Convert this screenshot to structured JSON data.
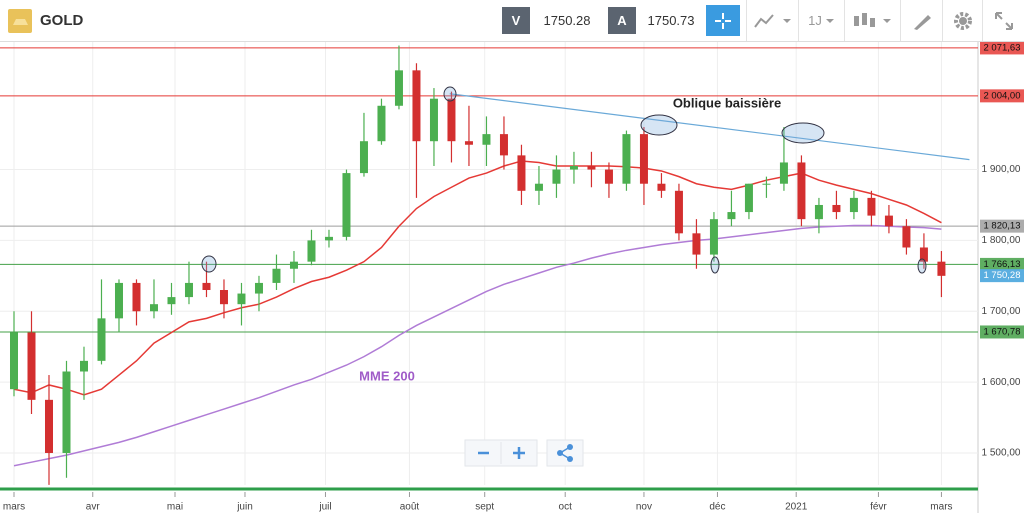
{
  "toolbar": {
    "symbol": "GOLD",
    "bid_label": "V",
    "bid": "1750.28",
    "ask_label": "A",
    "ask": "1750.73",
    "timeframe": "1J"
  },
  "chart_data": {
    "type": "candlestick",
    "xlim": [
      -0.8,
      55.09
    ],
    "xticks": [
      {
        "value": 0,
        "label": "mars"
      },
      {
        "value": 4.5,
        "label": "avr"
      },
      {
        "value": 9.2,
        "label": "mai"
      },
      {
        "value": 13.2,
        "label": "juin"
      },
      {
        "value": 17.8,
        "label": "juil"
      },
      {
        "value": 22.6,
        "label": "août"
      },
      {
        "value": 26.9,
        "label": "sept"
      },
      {
        "value": 31.5,
        "label": "oct"
      },
      {
        "value": 36.0,
        "label": "nov"
      },
      {
        "value": 40.2,
        "label": "déc"
      },
      {
        "value": 44.7,
        "label": "2021"
      },
      {
        "value": 49.4,
        "label": "févr"
      },
      {
        "value": 53.0,
        "label": "mars"
      }
    ],
    "ylim": [
      1440,
      2080
    ],
    "yticks": [
      {
        "value": 1500,
        "label": "1 500,00"
      },
      {
        "value": 1600,
        "label": "1 600,00"
      },
      {
        "value": 1700,
        "label": "1 700,00"
      },
      {
        "value": 1800,
        "label": "1 800,00"
      },
      {
        "value": 1900,
        "label": "1 900,00"
      }
    ],
    "grid": true,
    "up_color": "#4caf50",
    "down_color": "#d32f2f",
    "open": [
      1590,
      1670,
      1575,
      1500,
      1615,
      1630,
      1690,
      1740,
      1700,
      1710,
      1720,
      1740,
      1730,
      1710,
      1725,
      1740,
      1760,
      1770,
      1800,
      1805,
      1895,
      1940,
      1990,
      2040,
      1940,
      2000,
      1940,
      1935,
      1950,
      1920,
      1870,
      1880,
      1900,
      1905,
      1900,
      1880,
      1950,
      1880,
      1870,
      1810,
      1780,
      1830,
      1840,
      1880,
      1880,
      1910,
      1830,
      1850,
      1840,
      1860,
      1835,
      1820,
      1790,
      1770
    ],
    "high": [
      1700,
      1700,
      1610,
      1630,
      1650,
      1745,
      1745,
      1745,
      1745,
      1740,
      1770,
      1770,
      1745,
      1740,
      1750,
      1780,
      1785,
      1815,
      1815,
      1900,
      1980,
      2000,
      2075,
      2050,
      2015,
      2010,
      1990,
      1975,
      1975,
      1935,
      1905,
      1920,
      1925,
      1925,
      1910,
      1955,
      1960,
      1895,
      1880,
      1830,
      1840,
      1870,
      1880,
      1890,
      1960,
      1920,
      1860,
      1870,
      1870,
      1870,
      1850,
      1830,
      1810,
      1785
    ],
    "low": [
      1580,
      1555,
      1455,
      1465,
      1575,
      1625,
      1670,
      1680,
      1690,
      1695,
      1710,
      1720,
      1690,
      1680,
      1700,
      1730,
      1740,
      1765,
      1790,
      1800,
      1890,
      1935,
      1985,
      1860,
      1905,
      1910,
      1905,
      1905,
      1900,
      1850,
      1850,
      1860,
      1880,
      1875,
      1860,
      1870,
      1850,
      1860,
      1800,
      1760,
      1770,
      1820,
      1830,
      1860,
      1870,
      1820,
      1810,
      1830,
      1830,
      1820,
      1810,
      1780,
      1760,
      1720
    ],
    "close": [
      1670,
      1575,
      1500,
      1615,
      1630,
      1690,
      1740,
      1700,
      1710,
      1720,
      1740,
      1730,
      1710,
      1725,
      1740,
      1760,
      1770,
      1800,
      1805,
      1895,
      1940,
      1990,
      2040,
      1940,
      2000,
      1940,
      1935,
      1950,
      1920,
      1870,
      1880,
      1900,
      1905,
      1900,
      1880,
      1950,
      1880,
      1870,
      1810,
      1780,
      1830,
      1840,
      1880,
      1880,
      1910,
      1830,
      1850,
      1840,
      1860,
      1835,
      1820,
      1790,
      1770,
      1750
    ],
    "lines": [
      {
        "color": "#e53935",
        "values": [
          1590,
          1585,
          1596,
          1590,
          1582,
          1590,
          1610,
          1630,
          1655,
          1670,
          1685,
          1690,
          1698,
          1705,
          1710,
          1720,
          1732,
          1742,
          1748,
          1758,
          1770,
          1790,
          1820,
          1845,
          1862,
          1875,
          1888,
          1895,
          1905,
          1912,
          1910,
          1905,
          1905,
          1905,
          1905,
          1904,
          1902,
          1898,
          1890,
          1880,
          1875,
          1872,
          1878,
          1885,
          1890,
          1895,
          1885,
          1878,
          1872,
          1866,
          1858,
          1850,
          1838,
          1825
        ]
      },
      {
        "name": "MME 200",
        "color": "#b07cd6",
        "values": [
          1482,
          1487,
          1492,
          1497,
          1503,
          1509,
          1515,
          1522,
          1530,
          1538,
          1546,
          1554,
          1562,
          1570,
          1578,
          1587,
          1596,
          1604,
          1614,
          1624,
          1636,
          1650,
          1666,
          1680,
          1692,
          1704,
          1716,
          1728,
          1738,
          1746,
          1754,
          1762,
          1768,
          1775,
          1781,
          1786,
          1790,
          1794,
          1797,
          1800,
          1802,
          1805,
          1808,
          1811,
          1814,
          1817,
          1819,
          1820,
          1821,
          1821,
          1820,
          1819,
          1818,
          1816
        ]
      }
    ],
    "levels": [
      {
        "value": 2071.63,
        "label": "2 071,63",
        "color": "#e53935"
      },
      {
        "value": 2004.0,
        "label": "2 004,00",
        "color": "#e53935"
      },
      {
        "value": 1820.13,
        "label": "1 820,13",
        "color": "#9e9e9e"
      },
      {
        "value": 1766.13,
        "label": "1 766,13",
        "color": "#43a047"
      },
      {
        "value": 1670.78,
        "label": "1 670,78",
        "color": "#43a047"
      }
    ],
    "price_label": {
      "value": 1750.28,
      "label": "1 750,28",
      "color": "#5aaee0"
    },
    "trendline": {
      "text": "Oblique baissière",
      "color": "#6aa9d8",
      "x": [
        24.9,
        54.6
      ],
      "y": [
        2007,
        1914
      ]
    }
  }
}
